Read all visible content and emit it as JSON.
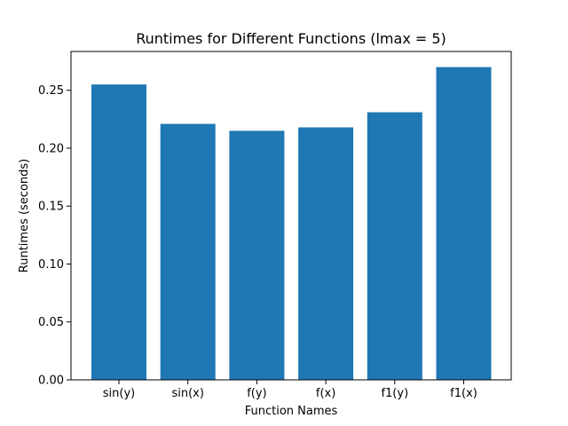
{
  "chart_data": {
    "type": "bar",
    "title": "Runtimes for Different Functions (lmax = 5)",
    "xlabel": "Function Names",
    "ylabel": "Runtimes (seconds)",
    "categories": [
      "sin(y)",
      "sin(x)",
      "f(y)",
      "f(x)",
      "f1(y)",
      "f1(x)"
    ],
    "values": [
      0.255,
      0.221,
      0.215,
      0.218,
      0.231,
      0.27
    ],
    "ylim": [
      0.0,
      0.2835
    ],
    "yticks": [
      0.0,
      0.05,
      0.1,
      0.15,
      0.2,
      0.25
    ],
    "ytick_labels": [
      "0.00",
      "0.05",
      "0.10",
      "0.15",
      "0.20",
      "0.25"
    ],
    "bar_color": "#1f77b4",
    "grid": false,
    "legend": "none"
  }
}
